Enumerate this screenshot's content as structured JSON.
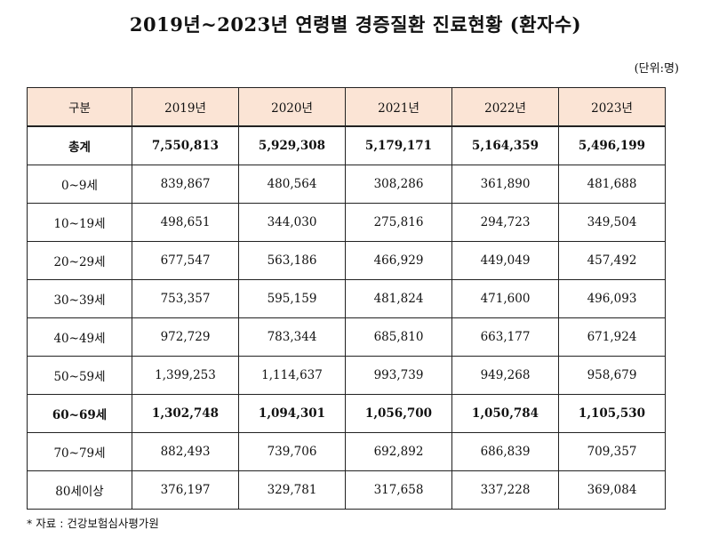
{
  "title": "2019년~2023년 연령별 경증질환 진료현황 (환자수)",
  "unit": "(단위:명)",
  "table": {
    "headers": [
      "구분",
      "2019년",
      "2020년",
      "2021년",
      "2022년",
      "2023년"
    ],
    "rows": [
      {
        "label": "총계",
        "values": [
          "7,550,813",
          "5,929,308",
          "5,179,171",
          "5,164,359",
          "5,496,199"
        ],
        "bold": true
      },
      {
        "label": "0~9세",
        "values": [
          "839,867",
          "480,564",
          "308,286",
          "361,890",
          "481,688"
        ],
        "bold": false
      },
      {
        "label": "10~19세",
        "values": [
          "498,651",
          "344,030",
          "275,816",
          "294,723",
          "349,504"
        ],
        "bold": false
      },
      {
        "label": "20~29세",
        "values": [
          "677,547",
          "563,186",
          "466,929",
          "449,049",
          "457,492"
        ],
        "bold": false
      },
      {
        "label": "30~39세",
        "values": [
          "753,357",
          "595,159",
          "481,824",
          "471,600",
          "496,093"
        ],
        "bold": false
      },
      {
        "label": "40~49세",
        "values": [
          "972,729",
          "783,344",
          "685,810",
          "663,177",
          "671,924"
        ],
        "bold": false
      },
      {
        "label": "50~59세",
        "values": [
          "1,399,253",
          "1,114,637",
          "993,739",
          "949,268",
          "958,679"
        ],
        "bold": false
      },
      {
        "label": "60~69세",
        "values": [
          "1,302,748",
          "1,094,301",
          "1,056,700",
          "1,050,784",
          "1,105,530"
        ],
        "bold": true
      },
      {
        "label": "70~79세",
        "values": [
          "882,493",
          "739,706",
          "692,892",
          "686,839",
          "709,357"
        ],
        "bold": false
      },
      {
        "label": "80세이상",
        "values": [
          "376,197",
          "329,781",
          "317,658",
          "337,228",
          "369,084"
        ],
        "bold": false
      }
    ]
  },
  "source": "* 자료 : 건강보험심사평가원"
}
